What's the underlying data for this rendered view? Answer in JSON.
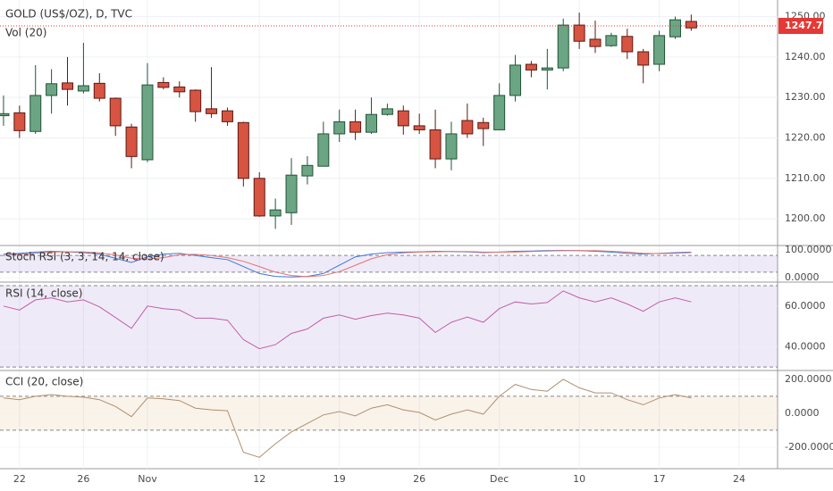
{
  "chart_data": {
    "type": "candlestick",
    "title": "GOLD (US$/OZ), D, TVC",
    "subtitle": "Vol (20)",
    "up_color": "#6ba583",
    "down_color": "#d75442",
    "open": [
      1225.5,
      1226.2,
      1221.6,
      1230.5,
      1233.6,
      1231.6,
      1233.5,
      1229.8,
      1222.7,
      1214.6,
      1233.7,
      1232.6,
      1231.8,
      1227.2,
      1226.7,
      1223.8,
      1210,
      1200.7,
      1201.5,
      1210.6,
      1213,
      1221,
      1224,
      1221.4,
      1225.8,
      1226.7,
      1223,
      1222,
      1214.8,
      1224.3,
      1223.8,
      1222,
      1230.5,
      1238.2,
      1236.8,
      1237.3,
      1247.9,
      1244.4,
      1242.8,
      1245.1,
      1241.3,
      1238.2,
      1245,
      1248.8
    ],
    "high": [
      1230.5,
      1228,
      1238,
      1237,
      1240,
      1243.5,
      1236,
      1230,
      1223.5,
      1238.5,
      1235,
      1234,
      1232,
      1237.5,
      1227.5,
      1224,
      1211.5,
      1205,
      1215,
      1215.5,
      1224,
      1227,
      1227,
      1230,
      1228.5,
      1228,
      1226,
      1227,
      1224,
      1228.5,
      1225,
      1233.5,
      1240.5,
      1239,
      1242,
      1249.5,
      1251,
      1249,
      1246,
      1247,
      1242,
      1246.5,
      1250,
      1250.5
    ],
    "low": [
      1223,
      1220,
      1221,
      1226,
      1228,
      1231,
      1229,
      1220.5,
      1212.5,
      1214,
      1232,
      1230,
      1224,
      1225,
      1223,
      1208,
      1200.5,
      1197.5,
      1198.5,
      1208.5,
      1213,
      1219,
      1219.5,
      1221,
      1225.5,
      1220.8,
      1221,
      1212.5,
      1212,
      1220,
      1218,
      1222,
      1229,
      1235,
      1232,
      1236.5,
      1242,
      1241,
      1242.5,
      1239.5,
      1233.5,
      1236.5,
      1244.5,
      1246.5
    ],
    "close": [
      1226,
      1221.8,
      1230.5,
      1233.4,
      1232,
      1232.9,
      1229.8,
      1223,
      1215.4,
      1233.1,
      1232.5,
      1231.4,
      1226.5,
      1226,
      1224,
      1210,
      1200.7,
      1202.2,
      1210.8,
      1213.2,
      1221,
      1224,
      1221.4,
      1225.8,
      1227.2,
      1223,
      1222,
      1214.8,
      1221,
      1221,
      1222.3,
      1230.5,
      1238,
      1236.8,
      1237.3,
      1247.9,
      1243.9,
      1242.6,
      1245.3,
      1241.3,
      1238,
      1245.3,
      1249.2,
      1247.2
    ],
    "last_price": {
      "value": 1247.7,
      "label": "1247.70"
    },
    "last_price_color": "#e53935",
    "xlim": [
      -0.22,
      48.4
    ],
    "xticks": [
      {
        "value": 1,
        "label": "22"
      },
      {
        "value": 5,
        "label": "26"
      },
      {
        "value": 9,
        "label": "Nov"
      },
      {
        "value": 16,
        "label": "12"
      },
      {
        "value": 21,
        "label": "19"
      },
      {
        "value": 26,
        "label": "26"
      },
      {
        "value": 31,
        "label": "Dec"
      },
      {
        "value": 36,
        "label": "10"
      },
      {
        "value": 41,
        "label": "17"
      },
      {
        "value": 46,
        "label": "24"
      }
    ],
    "ylim": [
      1193.4,
      1254.1
    ],
    "yticks": [
      {
        "value": 1200,
        "label": "1200.00"
      },
      {
        "value": 1210,
        "label": "1210.00"
      },
      {
        "value": 1220,
        "label": "1220.00"
      },
      {
        "value": 1230,
        "label": "1230.00"
      },
      {
        "value": 1240,
        "label": "1240.00"
      },
      {
        "value": 1250,
        "label": "1250.00"
      }
    ],
    "grid": true,
    "panels": [
      {
        "name": "Stoch RSI (3, 3, 14, 14, close)",
        "ylim": [
          -15.6,
          112.5
        ],
        "yticks": [
          {
            "value": 100,
            "label": "100.0000"
          },
          {
            "value": 0,
            "label": "0.0000"
          }
        ],
        "bands": [
          20,
          80
        ],
        "band_color": "#9575cd",
        "series": [
          {
            "color": "#3c78d8",
            "values": [
              85,
              88,
              92,
              95,
              93,
              90,
              85,
              70,
              55,
              75,
              85,
              88,
              80,
              72,
              65,
              40,
              15,
              5,
              3,
              5,
              15,
              45,
              75,
              85,
              90,
              92,
              93,
              95,
              94,
              93,
              90,
              92,
              95,
              96,
              97,
              98,
              97,
              95,
              92,
              88,
              85,
              88,
              90,
              92
            ]
          },
          {
            "color": "#e57373",
            "values": [
              80,
              84,
              88,
              92,
              93,
              93,
              89,
              82,
              70,
              67,
              72,
              83,
              84,
              80,
              72,
              59,
              40,
              20,
              8,
              4,
              8,
              22,
              45,
              68,
              83,
              89,
              92,
              93,
              94,
              94,
              92,
              92,
              92,
              94,
              96,
              97,
              97,
              97,
              95,
              92,
              88,
              87,
              88,
              90
            ]
          }
        ]
      },
      {
        "name": "RSI (14, close)",
        "ylim": [
          28.3,
          71.3
        ],
        "yticks": [
          {
            "value": 60,
            "label": "60.0000"
          },
          {
            "value": 40,
            "label": "40.0000"
          }
        ],
        "bands": [
          30,
          70
        ],
        "band_color": "#9575cd",
        "series": [
          {
            "color": "#c060a8",
            "values": [
              60,
              58,
              63,
              64,
              62,
              63,
              59.6,
              54.3,
              49,
              60,
              58.7,
              58,
              54,
              54,
              53,
              43.5,
              39,
              41,
              46.5,
              48.7,
              54,
              55.6,
              53.5,
              55.3,
              56.5,
              55.6,
              54,
              47,
              52,
              54.6,
              52,
              58.7,
              62,
              61,
              61.7,
              67.4,
              64,
              62,
              64,
              61,
              57.4,
              62,
              64,
              62
            ]
          }
        ]
      },
      {
        "name": "CCI (20, close)",
        "ylim": [
          -327,
          247
        ],
        "yticks": [
          {
            "value": 200,
            "label": "200.0000"
          },
          {
            "value": 0,
            "label": "0.0000"
          },
          {
            "value": -200,
            "label": "-200.0000"
          }
        ],
        "bands": [
          -100,
          100
        ],
        "band_color": "#e0b070",
        "series": [
          {
            "color": "#b09070",
            "values": [
              90,
              80,
              100,
              110,
              100,
              95,
              80,
              40,
              -20,
              90,
              85,
              75,
              30,
              20,
              15,
              -230,
              -260,
              -180,
              -110,
              -60,
              -10,
              10,
              -15,
              30,
              50,
              20,
              5,
              -40,
              -5,
              20,
              -5,
              100,
              170,
              140,
              130,
              200,
              150,
              120,
              120,
              80,
              50,
              90,
              110,
              90
            ]
          }
        ]
      }
    ]
  }
}
